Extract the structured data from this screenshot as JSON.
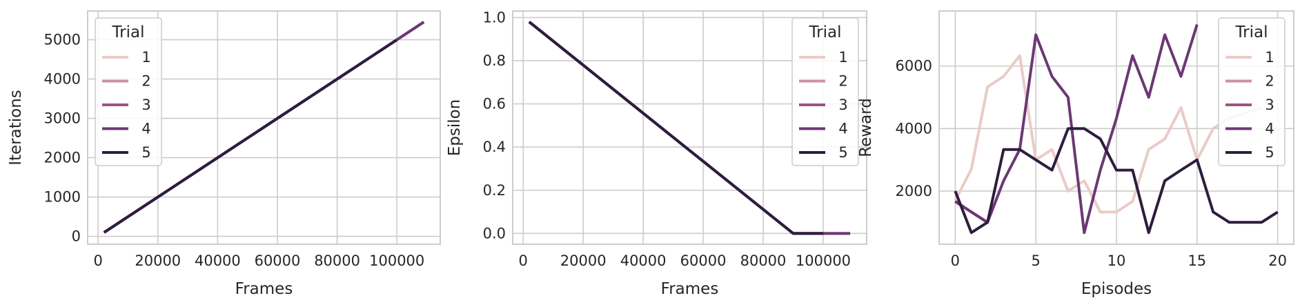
{
  "colors": {
    "series": [
      "#eacbc8",
      "#ce8fa3",
      "#9b5584",
      "#6b3873",
      "#2d1d3d"
    ],
    "grid": "#cccccc",
    "frame": "#cccccc",
    "background": "#ffffff",
    "text": "#262626"
  },
  "chart_data": [
    {
      "type": "line",
      "xlabel": "Frames",
      "ylabel": "Iterations",
      "xlim": [
        -3500,
        114500
      ],
      "ylim": [
        -200,
        5730
      ],
      "xticks": [
        0,
        20000,
        40000,
        60000,
        80000,
        100000
      ],
      "yticks": [
        0,
        1000,
        2000,
        3000,
        4000,
        5000
      ],
      "grid": true,
      "legend": {
        "title": "Trial",
        "placement": "upper left"
      },
      "series": [
        {
          "name": "1",
          "x": [
            2000,
            100000
          ],
          "y": [
            100,
            5000
          ]
        },
        {
          "name": "2",
          "x": [
            2000,
            100000
          ],
          "y": [
            100,
            5000
          ]
        },
        {
          "name": "3",
          "x": [
            2000,
            109000
          ],
          "y": [
            100,
            5450
          ]
        },
        {
          "name": "4",
          "x": [
            2000,
            109000
          ],
          "y": [
            100,
            5450
          ]
        },
        {
          "name": "5",
          "x": [
            2000,
            100000
          ],
          "y": [
            100,
            5000
          ]
        }
      ]
    },
    {
      "type": "line",
      "xlabel": "Frames",
      "ylabel": "Epsilon",
      "xlim": [
        -3500,
        114500
      ],
      "ylim": [
        -0.05,
        1.03
      ],
      "xticks": [
        0,
        20000,
        40000,
        60000,
        80000,
        100000
      ],
      "yticks": [
        0.0,
        0.2,
        0.4,
        0.6,
        0.8,
        1.0
      ],
      "grid": true,
      "legend": {
        "title": "Trial",
        "placement": "upper right"
      },
      "series": [
        {
          "name": "1",
          "x": [
            2000,
            90000,
            100000
          ],
          "y": [
            0.98,
            0.0,
            0.0
          ]
        },
        {
          "name": "2",
          "x": [
            2000,
            90000,
            100000
          ],
          "y": [
            0.98,
            0.0,
            0.0
          ]
        },
        {
          "name": "3",
          "x": [
            2000,
            90000,
            109000
          ],
          "y": [
            0.98,
            0.0,
            0.0
          ]
        },
        {
          "name": "4",
          "x": [
            2000,
            90000,
            109000
          ],
          "y": [
            0.98,
            0.0,
            0.0
          ]
        },
        {
          "name": "5",
          "x": [
            2000,
            90000,
            100000
          ],
          "y": [
            0.98,
            0.0,
            0.0
          ]
        }
      ]
    },
    {
      "type": "line",
      "xlabel": "Episodes",
      "ylabel": "Reward",
      "xlim": [
        -1,
        21
      ],
      "ylim": [
        300,
        7760
      ],
      "xticks": [
        0,
        5,
        10,
        15,
        20
      ],
      "yticks": [
        2000,
        4000,
        6000
      ],
      "grid": true,
      "legend": {
        "title": "Trial",
        "placement": "upper right"
      },
      "series": [
        {
          "name": "1",
          "x": [
            0,
            1,
            2,
            3,
            4,
            5,
            6,
            7,
            8,
            9,
            10,
            11,
            12,
            13,
            14,
            15,
            16,
            17,
            18,
            19
          ],
          "y": [
            1700,
            2700,
            5330,
            5670,
            6330,
            3000,
            3330,
            2000,
            2330,
            1330,
            1330,
            1670,
            3330,
            3670,
            4670,
            3000,
            4000,
            4330,
            4500,
            4670
          ]
        },
        {
          "name": "2",
          "x": [
            0,
            1,
            2
          ],
          "y": [
            1670,
            1330,
            1000
          ]
        },
        {
          "name": "3",
          "x": [
            0,
            1,
            2
          ],
          "y": [
            1670,
            1330,
            1000
          ]
        },
        {
          "name": "4",
          "x": [
            0,
            1,
            2,
            3,
            4,
            5,
            6,
            7,
            8,
            9,
            10,
            11,
            12,
            13,
            14,
            15
          ],
          "y": [
            1670,
            1330,
            1000,
            2330,
            3330,
            7000,
            5670,
            5000,
            670,
            2670,
            4330,
            6330,
            5000,
            7000,
            5670,
            7330
          ]
        },
        {
          "name": "5",
          "x": [
            0,
            1,
            2,
            3,
            4,
            5,
            6,
            7,
            8,
            9,
            10,
            11,
            12,
            13,
            14,
            15,
            16,
            17,
            18,
            19,
            20
          ],
          "y": [
            2000,
            670,
            1000,
            3330,
            3330,
            3000,
            2670,
            4000,
            4000,
            3670,
            2670,
            2670,
            670,
            2330,
            2670,
            3000,
            1330,
            1000,
            1000,
            1000,
            1330
          ]
        }
      ]
    }
  ]
}
